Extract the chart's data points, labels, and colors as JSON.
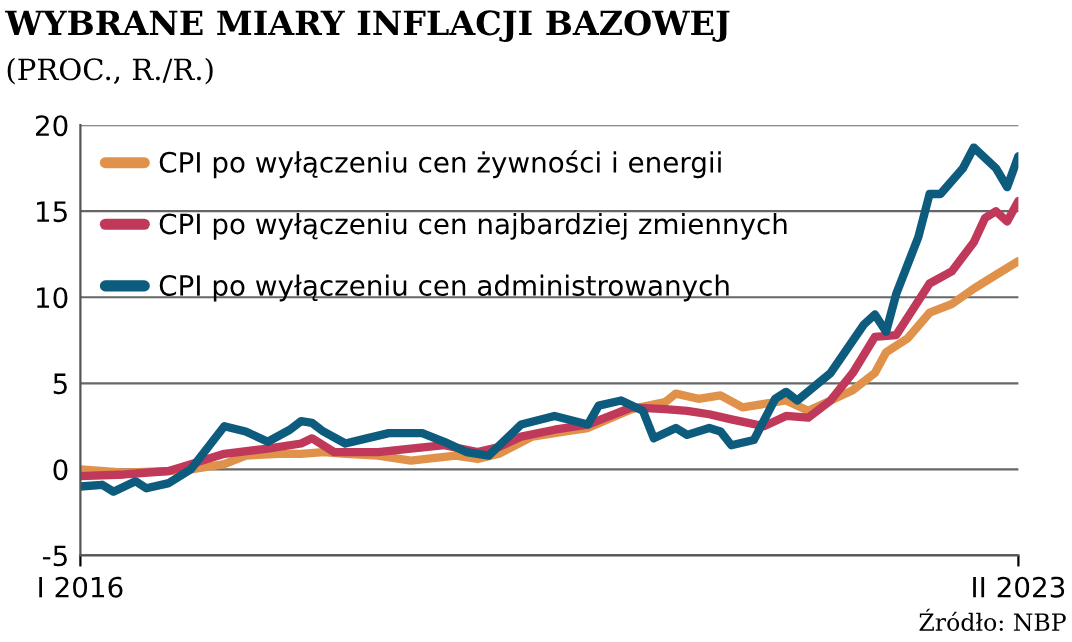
{
  "chart_data": {
    "type": "line",
    "title": "WYBRANE MIARY INFLACJI BAZOWEJ",
    "subtitle": "(PROC., R./R.)",
    "annotations": [
      "Źródło: NBP"
    ],
    "xlim": [
      "2016-01",
      "2023-02"
    ],
    "xticks": [
      {
        "value": "2016-01",
        "label": "I 2016"
      },
      {
        "value": "2023-02",
        "label": "II 2023"
      }
    ],
    "ylim": [
      -5,
      20
    ],
    "yticks": [
      -5,
      0,
      5,
      10,
      15,
      20
    ],
    "grid": "y",
    "legend": "top left",
    "line_style": "solid",
    "series": [
      {
        "name": "CPI po wyłączeniu cen żywności i energii",
        "color": "#e0924a",
        "x": [
          "2016-01",
          "2016-05",
          "2016-09",
          "2016-11",
          "2017-02",
          "2017-04",
          "2017-07",
          "2017-09",
          "2017-11",
          "2018-01",
          "2018-04",
          "2018-07",
          "2018-11",
          "2019-01",
          "2019-03",
          "2019-06",
          "2019-09",
          "2019-11",
          "2020-03",
          "2020-06",
          "2020-07",
          "2020-09",
          "2020-11",
          "2021-01",
          "2021-03",
          "2021-05",
          "2021-07",
          "2021-09",
          "2021-11",
          "2022-01",
          "2022-02",
          "2022-04",
          "2022-06",
          "2022-08",
          "2022-10",
          "2022-12",
          "2023-02"
        ],
        "values": [
          0.0,
          -0.2,
          -0.1,
          0.0,
          0.3,
          0.8,
          0.9,
          0.9,
          1.0,
          0.9,
          0.8,
          0.5,
          0.8,
          0.6,
          0.9,
          1.9,
          2.2,
          2.4,
          3.5,
          3.9,
          4.4,
          4.1,
          4.3,
          3.6,
          3.8,
          4.0,
          3.4,
          4.0,
          4.6,
          5.6,
          6.8,
          7.6,
          9.1,
          9.6,
          10.5,
          11.3,
          12.1
        ]
      },
      {
        "name": "CPI po wyłączeniu cen najbardziej zmiennych",
        "color": "#c0395a",
        "x": [
          "2016-01",
          "2016-05",
          "2016-09",
          "2016-11",
          "2017-02",
          "2017-06",
          "2017-09",
          "2017-10",
          "2017-12",
          "2018-04",
          "2018-07",
          "2018-10",
          "2019-01",
          "2019-03",
          "2019-05",
          "2019-08",
          "2019-11",
          "2020-03",
          "2020-06",
          "2020-08",
          "2020-10",
          "2020-12",
          "2021-03",
          "2021-05",
          "2021-07",
          "2021-09",
          "2021-11",
          "2022-01",
          "2022-03",
          "2022-06",
          "2022-08",
          "2022-10",
          "2022-11",
          "2022-12",
          "2023-01",
          "2023-02"
        ],
        "values": [
          -0.4,
          -0.3,
          -0.1,
          0.3,
          0.9,
          1.2,
          1.5,
          1.8,
          1.0,
          1.0,
          1.2,
          1.4,
          1.0,
          1.3,
          1.9,
          2.3,
          2.6,
          3.6,
          3.5,
          3.4,
          3.2,
          2.9,
          2.5,
          3.1,
          3.0,
          4.0,
          5.6,
          7.7,
          7.8,
          10.8,
          11.5,
          13.2,
          14.6,
          15.0,
          14.4,
          15.6
        ]
      },
      {
        "name": "CPI po wyłączeniu cen administrowanych",
        "color": "#0d5b7d",
        "x": [
          "2016-01",
          "2016-03",
          "2016-04",
          "2016-06",
          "2016-07",
          "2016-09",
          "2016-11",
          "2017-02",
          "2017-04",
          "2017-06",
          "2017-08",
          "2017-09",
          "2017-10",
          "2017-11",
          "2018-01",
          "2018-03",
          "2018-05",
          "2018-08",
          "2018-10",
          "2018-12",
          "2019-02",
          "2019-05",
          "2019-08",
          "2019-11",
          "2019-12",
          "2020-02",
          "2020-04",
          "2020-05",
          "2020-07",
          "2020-08",
          "2020-10",
          "2020-11",
          "2020-12",
          "2021-02",
          "2021-04",
          "2021-05",
          "2021-06",
          "2021-09",
          "2021-12",
          "2022-01",
          "2022-02",
          "2022-03",
          "2022-05",
          "2022-06",
          "2022-07",
          "2022-09",
          "2022-10",
          "2022-12",
          "2023-01",
          "2023-02"
        ],
        "values": [
          -1.0,
          -0.9,
          -1.3,
          -0.7,
          -1.1,
          -0.8,
          0.0,
          2.5,
          2.2,
          1.6,
          2.3,
          2.8,
          2.7,
          2.2,
          1.5,
          1.8,
          2.1,
          2.1,
          1.6,
          1.0,
          0.8,
          2.6,
          3.1,
          2.6,
          3.7,
          4.0,
          3.4,
          1.8,
          2.4,
          2.0,
          2.4,
          2.2,
          1.4,
          1.7,
          4.1,
          4.5,
          4.0,
          5.6,
          8.4,
          9.0,
          8.0,
          10.2,
          13.5,
          16.0,
          16.0,
          17.5,
          18.7,
          17.5,
          16.4,
          18.2
        ]
      }
    ]
  }
}
